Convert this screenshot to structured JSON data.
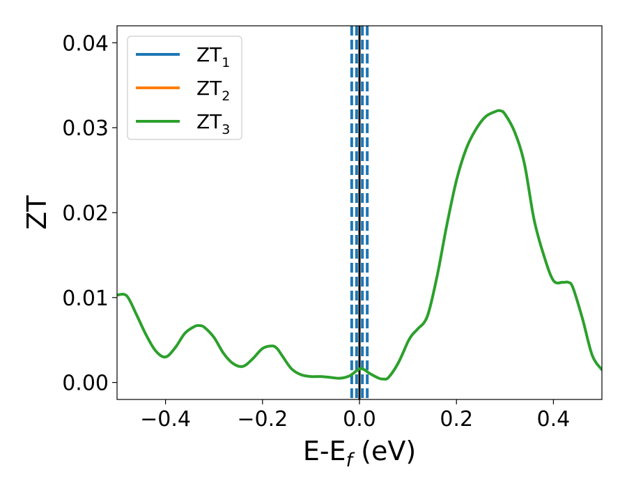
{
  "chart_data": {
    "type": "line",
    "title": "",
    "xlabel": "E-E",
    "xlabel_sub": "f",
    "xlabel_unit": " (eV)",
    "ylabel": "ZT",
    "xlim": [
      -0.5,
      0.5
    ],
    "ylim": [
      -0.002,
      0.042
    ],
    "grid": false,
    "legend_position": "top-left",
    "xticks": [
      -0.4,
      -0.2,
      0.0,
      0.2,
      0.4
    ],
    "xtick_labels": [
      "−0.4",
      "−0.2",
      "0.0",
      "0.2",
      "0.4"
    ],
    "yticks": [
      0.0,
      0.01,
      0.02,
      0.03,
      0.04
    ],
    "ytick_labels": [
      "0.00",
      "0.01",
      "0.02",
      "0.03",
      "0.04"
    ],
    "series": [
      {
        "name": "ZT",
        "name_sub": "1",
        "color": "#1f77b4"
      },
      {
        "name": "ZT",
        "name_sub": "2",
        "color": "#ff7f0e"
      },
      {
        "name": "ZT",
        "name_sub": "3",
        "color": "#2ca02c"
      }
    ],
    "curve": {
      "color": "#2ca02c",
      "x": [
        -0.5,
        -0.48,
        -0.46,
        -0.44,
        -0.42,
        -0.4,
        -0.38,
        -0.36,
        -0.34,
        -0.33,
        -0.32,
        -0.3,
        -0.28,
        -0.26,
        -0.24,
        -0.22,
        -0.2,
        -0.18,
        -0.17,
        -0.16,
        -0.14,
        -0.12,
        -0.1,
        -0.08,
        -0.06,
        -0.04,
        -0.02,
        0.0,
        0.01,
        0.02,
        0.04,
        0.05,
        0.06,
        0.08,
        0.1,
        0.11,
        0.12,
        0.14,
        0.16,
        0.18,
        0.2,
        0.22,
        0.24,
        0.26,
        0.28,
        0.29,
        0.3,
        0.32,
        0.34,
        0.36,
        0.38,
        0.4,
        0.42,
        0.43,
        0.44,
        0.46,
        0.48,
        0.5
      ],
      "y": [
        0.0103,
        0.0102,
        0.008,
        0.0056,
        0.0037,
        0.003,
        0.0041,
        0.0058,
        0.0066,
        0.0067,
        0.0065,
        0.0053,
        0.0034,
        0.0022,
        0.0019,
        0.0028,
        0.004,
        0.0043,
        0.004,
        0.0032,
        0.0016,
        0.0009,
        0.0007,
        0.0007,
        0.0006,
        0.0005,
        0.0008,
        0.0016,
        0.0015,
        0.0011,
        0.0005,
        0.0004,
        0.0006,
        0.0023,
        0.0048,
        0.0057,
        0.0063,
        0.0078,
        0.0125,
        0.0185,
        0.0238,
        0.0275,
        0.0298,
        0.0313,
        0.0319,
        0.032,
        0.0316,
        0.0295,
        0.0258,
        0.0192,
        0.015,
        0.012,
        0.0118,
        0.0118,
        0.0112,
        0.0075,
        0.0032,
        0.0015
      ]
    },
    "vlines": {
      "solid": {
        "x": 0.0,
        "color": "#000000"
      },
      "dashed": {
        "x": [
          -0.016,
          -0.006,
          0.006,
          0.016
        ],
        "color": "#1f77b4"
      }
    }
  }
}
